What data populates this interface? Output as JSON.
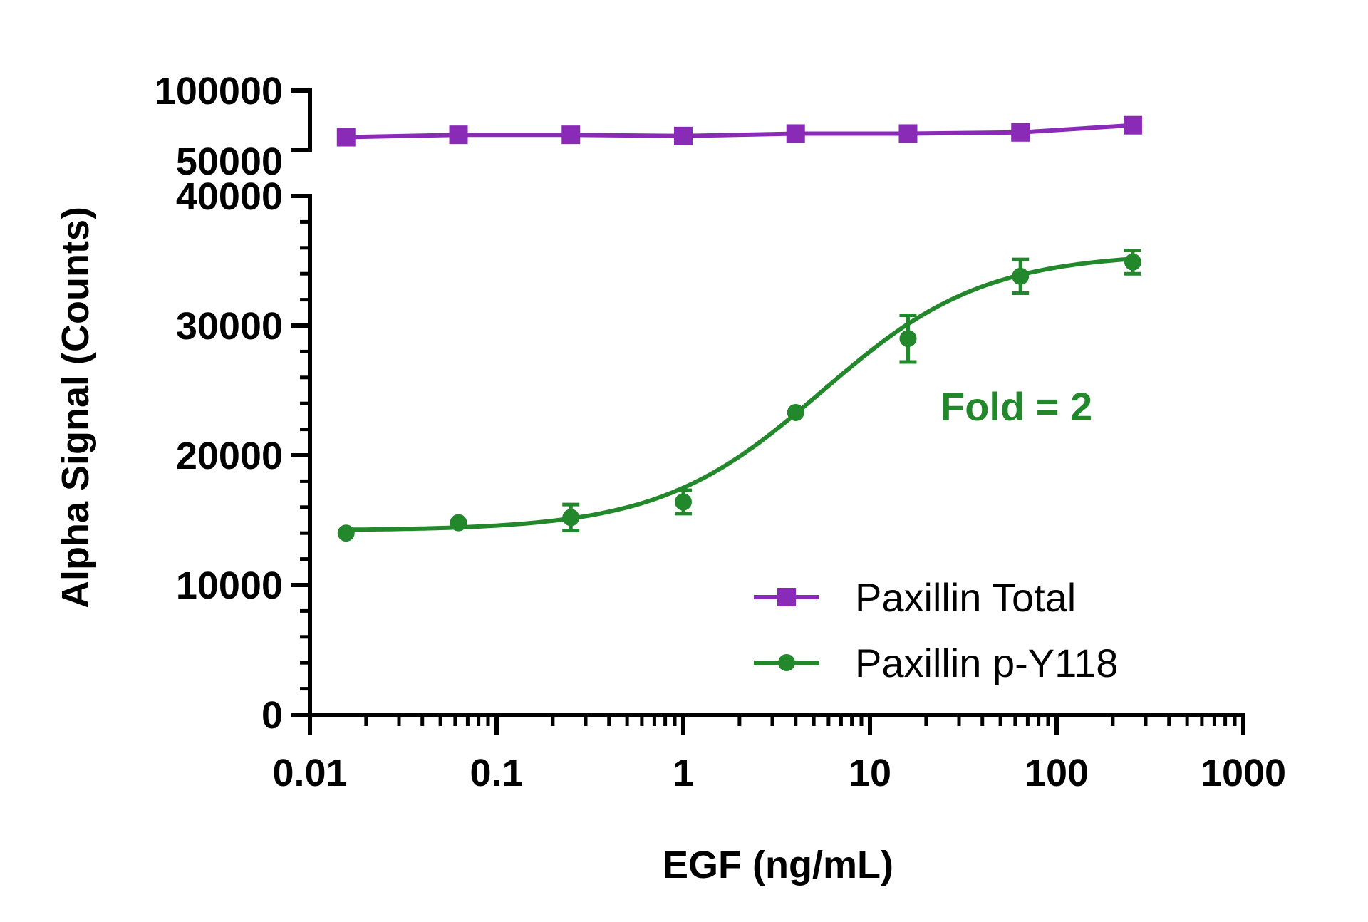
{
  "chart_data": {
    "type": "line",
    "xlabel": "EGF (ng/mL)",
    "ylabel": "Alpha Signal (Counts)",
    "x_scale": "log",
    "xlim": [
      0.01,
      1000
    ],
    "x_ticks": [
      "0.01",
      "0.1",
      "1",
      "10",
      "100",
      "1000"
    ],
    "y_lower_range": [
      0,
      40000
    ],
    "y_lower_ticks": [
      "0",
      "10000",
      "20000",
      "30000",
      "40000"
    ],
    "y_upper_range": [
      50000,
      100000
    ],
    "y_upper_ticks": [
      "50000",
      "100000"
    ],
    "grid": false,
    "legend_position": "bottom-right",
    "annotation": "Fold = 2",
    "series": [
      {
        "name": "Paxillin Total",
        "color": "#8a2bb8",
        "marker": "square",
        "x": [
          0.015625,
          0.0625,
          0.25,
          1,
          4,
          16,
          64,
          256
        ],
        "y": [
          61000,
          63000,
          63000,
          62000,
          64000,
          64000,
          65000,
          71000
        ]
      },
      {
        "name": "Paxillin p-Y118",
        "color": "#23882c",
        "marker": "circle",
        "x": [
          0.015625,
          0.0625,
          0.25,
          1,
          4,
          16,
          64,
          256
        ],
        "y": [
          14000,
          14800,
          15200,
          16400,
          23300,
          29000,
          33800,
          34900
        ],
        "err": [
          0,
          0,
          1000,
          900,
          0,
          1800,
          1300,
          900
        ],
        "fit": {
          "bottom": 14200,
          "top": 35600,
          "ec50": 5.5,
          "hill": 1.0
        }
      }
    ]
  }
}
